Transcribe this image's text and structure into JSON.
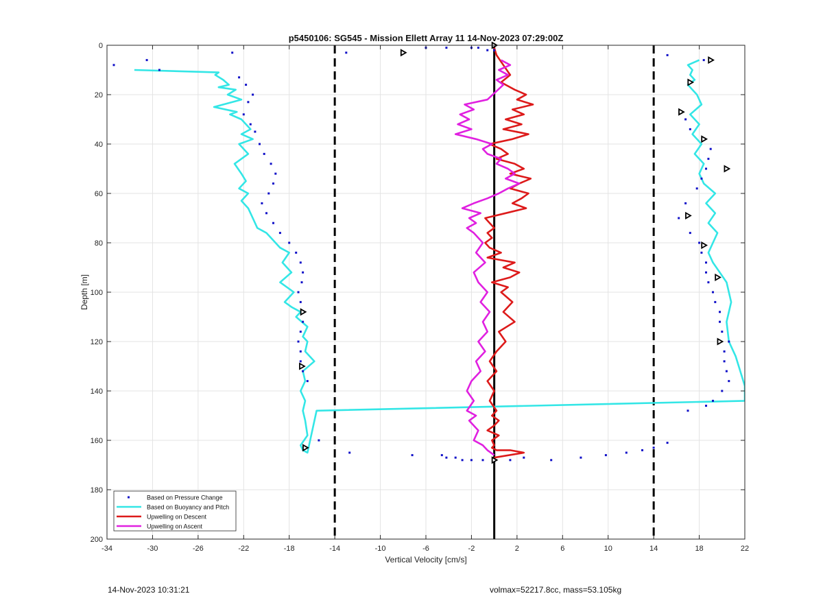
{
  "chart_data": {
    "type": "scatter",
    "title": "p5450106: SG545 - Mission Ellett Array 11 14-Nov-2023 07:29:00Z",
    "xlabel": "Vertical Velocity [cm/s]",
    "ylabel": "Depth [m]",
    "xlim": [
      -34,
      22
    ],
    "ylim": [
      0,
      200
    ],
    "y_reversed": true,
    "grid": true,
    "xticks": [
      "-34",
      "-30",
      "-26",
      "-22",
      "-18",
      "-14",
      "-10",
      "-6",
      "-2",
      "2",
      "6",
      "10",
      "14",
      "18",
      "22"
    ],
    "yticks": [
      "0",
      "20",
      "40",
      "60",
      "80",
      "100",
      "120",
      "140",
      "160",
      "180",
      "200"
    ],
    "legend_position": "bottom-left",
    "legend": [
      {
        "label": "Based on Pressure Change",
        "style": "points",
        "color": "#1010c8"
      },
      {
        "label": "Based on Buoyancy and Pitch",
        "style": "line",
        "color": "#33e6e6"
      },
      {
        "label": "Upwelling on Descent",
        "style": "line",
        "color": "#dd1a1a"
      },
      {
        "label": "Upwelling on Ascent",
        "style": "line",
        "color": "#e020e0"
      }
    ],
    "vertical_lines": [
      {
        "x": -14,
        "style": "dashed",
        "color": "#000000"
      },
      {
        "x": 0,
        "style": "solid",
        "color": "#000000"
      },
      {
        "x": 14,
        "style": "dashed",
        "color": "#000000"
      }
    ],
    "series": [
      {
        "name": "Based on Pressure Change",
        "style": "points",
        "color": "#1010c8",
        "x": [
          -33.4,
          -30.5,
          -29.4,
          -23.0,
          -22.4,
          -21.8,
          -21.2,
          -21.6,
          -22.0,
          -21.4,
          -21.0,
          -20.6,
          -20.2,
          -19.6,
          -19.2,
          -19.4,
          -19.8,
          -20.4,
          -20.0,
          -19.4,
          -18.8,
          -18.0,
          -17.4,
          -17.0,
          -16.8,
          -16.9,
          -17.2,
          -17.0,
          -16.8,
          -16.8,
          -17.0,
          -17.2,
          -17.0,
          -17.0,
          -16.8,
          -16.4,
          -15.4,
          -12.7,
          -7.2,
          -4.6,
          -4.2,
          -3.4,
          -2.8,
          -2.0,
          -1.0,
          0.0,
          1.4,
          2.6,
          5.0,
          7.6,
          9.8,
          11.6,
          13.0,
          14.0,
          15.2,
          17.0,
          18.6,
          19.2,
          20.0,
          20.6,
          20.4,
          20.2,
          20.2,
          20.6,
          20.0,
          19.8,
          19.8,
          19.4,
          19.2,
          18.8,
          18.6,
          18.6,
          18.2,
          18.0,
          17.2,
          16.2,
          16.8,
          17.8,
          18.2,
          18.6,
          18.8,
          19.0,
          17.2,
          16.8,
          -13.0,
          -6.0,
          -4.2,
          -2.0,
          -1.4,
          -0.6,
          0.0,
          15.2,
          18.4
        ],
        "y": [
          8,
          6,
          10,
          3,
          13,
          16,
          20,
          23,
          28,
          32,
          35,
          40,
          44,
          48,
          52,
          56,
          60,
          64,
          68,
          72,
          76,
          80,
          84,
          88,
          92,
          96,
          100,
          104,
          108,
          112,
          116,
          120,
          124,
          128,
          132,
          136,
          160,
          165,
          166,
          166,
          167,
          167,
          168,
          168,
          168,
          168,
          168,
          167,
          168,
          167,
          166,
          165,
          164,
          163,
          161,
          148,
          146,
          144,
          140,
          136,
          132,
          128,
          124,
          120,
          116,
          112,
          108,
          104,
          100,
          96,
          92,
          88,
          84,
          80,
          76,
          70,
          64,
          58,
          54,
          50,
          46,
          42,
          34,
          30,
          3,
          1,
          1,
          1,
          1,
          2,
          2,
          4,
          6
        ]
      },
      {
        "name": "Based on Buoyancy and Pitch",
        "style": "line",
        "color": "#33e6e6",
        "x": [
          -31.6,
          -24.2,
          -24.5,
          -23.8,
          -23.3,
          -24.2,
          -22.7,
          -23.4,
          -22.2,
          -24.6,
          -22.6,
          -23.2,
          -22.2,
          -21.4,
          -22.2,
          -21.2,
          -22.4,
          -21.6,
          -22.8,
          -22.2,
          -21.8,
          -22.4,
          -21.6,
          -22.2,
          -21.6,
          -21.2,
          -20.8,
          -20.0,
          -19.6,
          -18.8,
          -18.0,
          -18.6,
          -17.8,
          -18.8,
          -17.6,
          -18.4,
          -17.8,
          -17.0,
          -17.4,
          -16.4,
          -16.8,
          -16.4,
          -16.6,
          -15.8,
          -16.8,
          -16.6,
          -17.0,
          -16.6,
          -16.8,
          -16.6,
          -16.4,
          -17.0,
          -16.8,
          -16.4,
          -15.6,
          22.0,
          22.0,
          21.6,
          21.2,
          20.6,
          20.4,
          20.8,
          20.4,
          19.8,
          19.2,
          18.8,
          19.2,
          19.6,
          18.8,
          19.4,
          18.6,
          19.4,
          18.4,
          18.0,
          18.4,
          17.6,
          18.2,
          17.4,
          18.0,
          17.2,
          18.2,
          17.8,
          17.0,
          17.6,
          17.2,
          17.4,
          17.0,
          18.0
        ],
        "y": [
          10,
          11,
          12,
          14,
          16,
          17,
          18,
          20,
          22,
          25,
          27,
          28,
          30,
          34,
          36,
          38,
          40,
          44,
          48,
          52,
          55,
          58,
          60,
          63,
          66,
          70,
          74,
          76,
          78,
          82,
          84,
          88,
          92,
          96,
          100,
          104,
          106,
          108,
          110,
          114,
          118,
          120,
          124,
          128,
          132,
          136,
          140,
          144,
          148,
          152,
          158,
          162,
          164,
          165,
          148,
          144,
          138,
          132,
          126,
          120,
          112,
          104,
          96,
          92,
          88,
          84,
          80,
          76,
          72,
          68,
          64,
          60,
          56,
          52,
          48,
          44,
          40,
          36,
          32,
          28,
          24,
          20,
          16,
          14,
          12,
          10,
          8,
          6
        ],
        "note": ""
      },
      {
        "name": "Upwelling on Descent",
        "style": "line",
        "color": "#dd1a1a",
        "x": [
          0.0,
          0.2,
          0.8,
          1.4,
          0.6,
          1.8,
          2.8,
          2.0,
          3.4,
          1.6,
          2.6,
          1.0,
          2.4,
          0.8,
          3.0,
          1.6,
          -0.4,
          0.6,
          1.2,
          0.2,
          1.8,
          2.6,
          1.4,
          3.2,
          2.2,
          1.4,
          3.0,
          2.4,
          1.6,
          2.8,
          1.0,
          -0.8,
          -0.4,
          0.0,
          -0.6,
          -0.2,
          -0.8,
          -0.4,
          0.6,
          -0.6,
          1.8,
          0.8,
          2.2,
          1.4,
          -0.2,
          1.2,
          0.6,
          1.6,
          0.8,
          1.8,
          0.4,
          1.0,
          0.2,
          -0.4,
          0.2,
          -0.6,
          0.0,
          -0.4,
          0.2,
          -0.2,
          0.4,
          0.0,
          -0.6,
          0.4,
          -0.2,
          0.0,
          -0.2,
          0.2,
          1.4,
          2.6,
          0.0
        ],
        "y": [
          1,
          4,
          8,
          12,
          15,
          18,
          20,
          22,
          24,
          26,
          28,
          30,
          32,
          34,
          36,
          38,
          40,
          42,
          44,
          46,
          48,
          50,
          52,
          54,
          56,
          58,
          60,
          62,
          64,
          66,
          68,
          70,
          72,
          74,
          76,
          78,
          80,
          82,
          84,
          86,
          88,
          90,
          92,
          94,
          96,
          98,
          100,
          104,
          108,
          112,
          116,
          120,
          124,
          128,
          132,
          136,
          140,
          144,
          148,
          150,
          152,
          154,
          156,
          158,
          160,
          162,
          163,
          164,
          164,
          165,
          167
        ],
        "note": ""
      },
      {
        "name": "Upwelling on Ascent",
        "style": "line",
        "color": "#e020e0",
        "x": [
          0.6,
          1.4,
          0.4,
          1.2,
          0.2,
          0.8,
          -0.6,
          -2.6,
          -1.8,
          -3.0,
          -2.2,
          -3.2,
          -2.0,
          -3.4,
          -1.6,
          -0.2,
          -1.0,
          -0.6,
          0.6,
          0.2,
          1.2,
          1.8,
          1.0,
          2.2,
          1.2,
          0.4,
          -0.6,
          -1.8,
          -2.8,
          -1.2,
          -2.2,
          -1.6,
          -2.4,
          -1.8,
          -1.0,
          -1.6,
          -0.8,
          -1.8,
          -1.4,
          -0.6,
          -1.2,
          -0.4,
          -1.0,
          -0.6,
          -1.4,
          -0.8,
          -1.6,
          -1.2,
          -2.0,
          -2.4,
          -1.8,
          -2.4,
          -1.6,
          -2.2,
          -1.4,
          -1.8,
          -1.0,
          -0.6,
          0.0
        ],
        "y": [
          6,
          8,
          10,
          12,
          14,
          16,
          22,
          24,
          26,
          28,
          30,
          32,
          34,
          36,
          38,
          40,
          42,
          44,
          46,
          48,
          50,
          52,
          54,
          56,
          58,
          60,
          62,
          64,
          66,
          68,
          70,
          72,
          74,
          76,
          80,
          84,
          88,
          92,
          96,
          100,
          104,
          108,
          112,
          116,
          120,
          124,
          128,
          132,
          136,
          140,
          144,
          148,
          150,
          152,
          156,
          160,
          162,
          164,
          166
        ],
        "note": ""
      }
    ],
    "markers": [
      {
        "shape": "triangle-right",
        "color": "#000000",
        "x": [
          0.0,
          -8.0,
          -16.8,
          -16.9,
          -16.6,
          19.0,
          17.2,
          16.4,
          18.4,
          20.4,
          17.0,
          18.4,
          19.6,
          19.8,
          0.0
        ],
        "y": [
          0,
          3,
          108,
          130,
          163,
          6,
          15,
          27,
          38,
          50,
          69,
          81,
          94,
          120,
          168
        ]
      }
    ]
  },
  "footer": {
    "left": "14-Nov-2023 10:31:21",
    "right": "volmax=52217.8cc, mass=53.105kg"
  }
}
